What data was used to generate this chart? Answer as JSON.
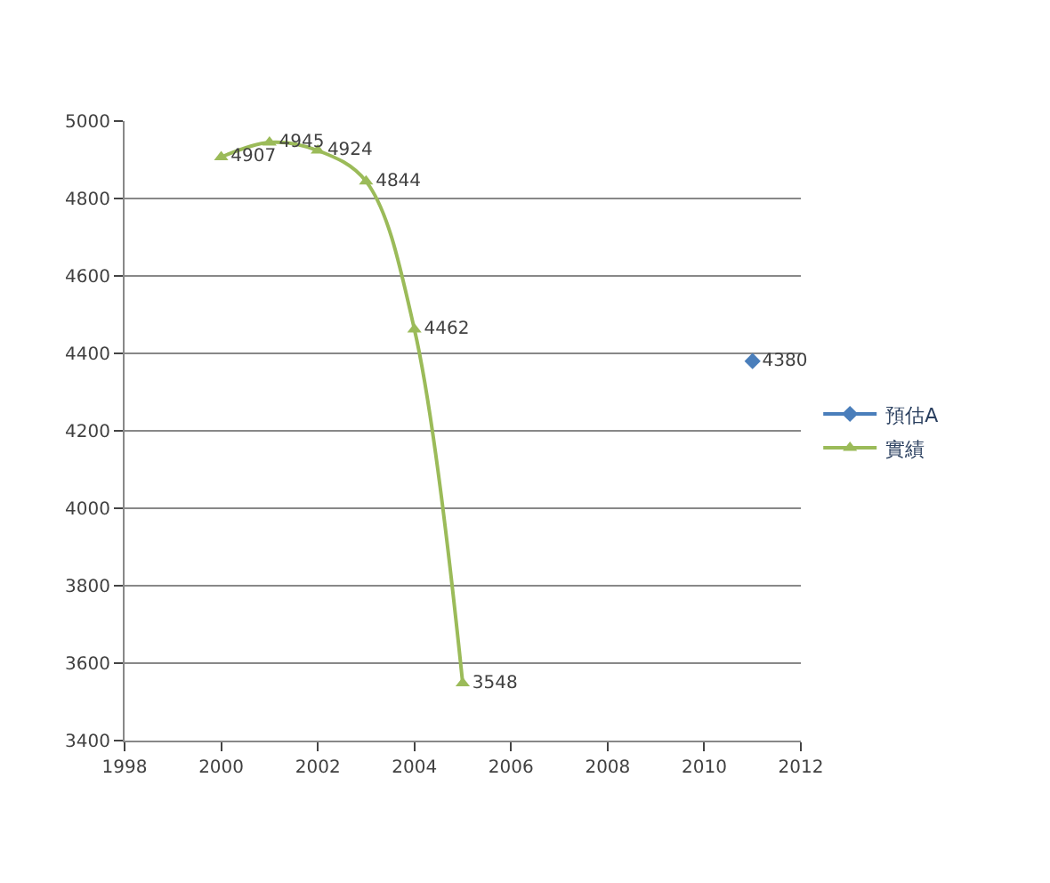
{
  "chart_data": {
    "type": "line",
    "xlim": [
      1998,
      2012
    ],
    "xticks": [
      1998,
      2000,
      2002,
      2004,
      2006,
      2008,
      2010,
      2012
    ],
    "ylim": [
      3400,
      5000
    ],
    "yticks": [
      3400,
      3600,
      3800,
      4000,
      4200,
      4400,
      4600,
      4800,
      5000
    ],
    "grid": "y",
    "legend": "right",
    "data_labels": true,
    "series": [
      {
        "name": "預估A",
        "color": "#4a7ebb",
        "marker": "diamond",
        "x": [
          2011
        ],
        "values": [
          4380
        ]
      },
      {
        "name": "實績",
        "color": "#9bbb59",
        "marker": "triangle",
        "x": [
          2000,
          2001,
          2002,
          2003,
          2004,
          2005
        ],
        "values": [
          4907,
          4945,
          4924,
          4844,
          4462,
          3548
        ]
      }
    ]
  }
}
